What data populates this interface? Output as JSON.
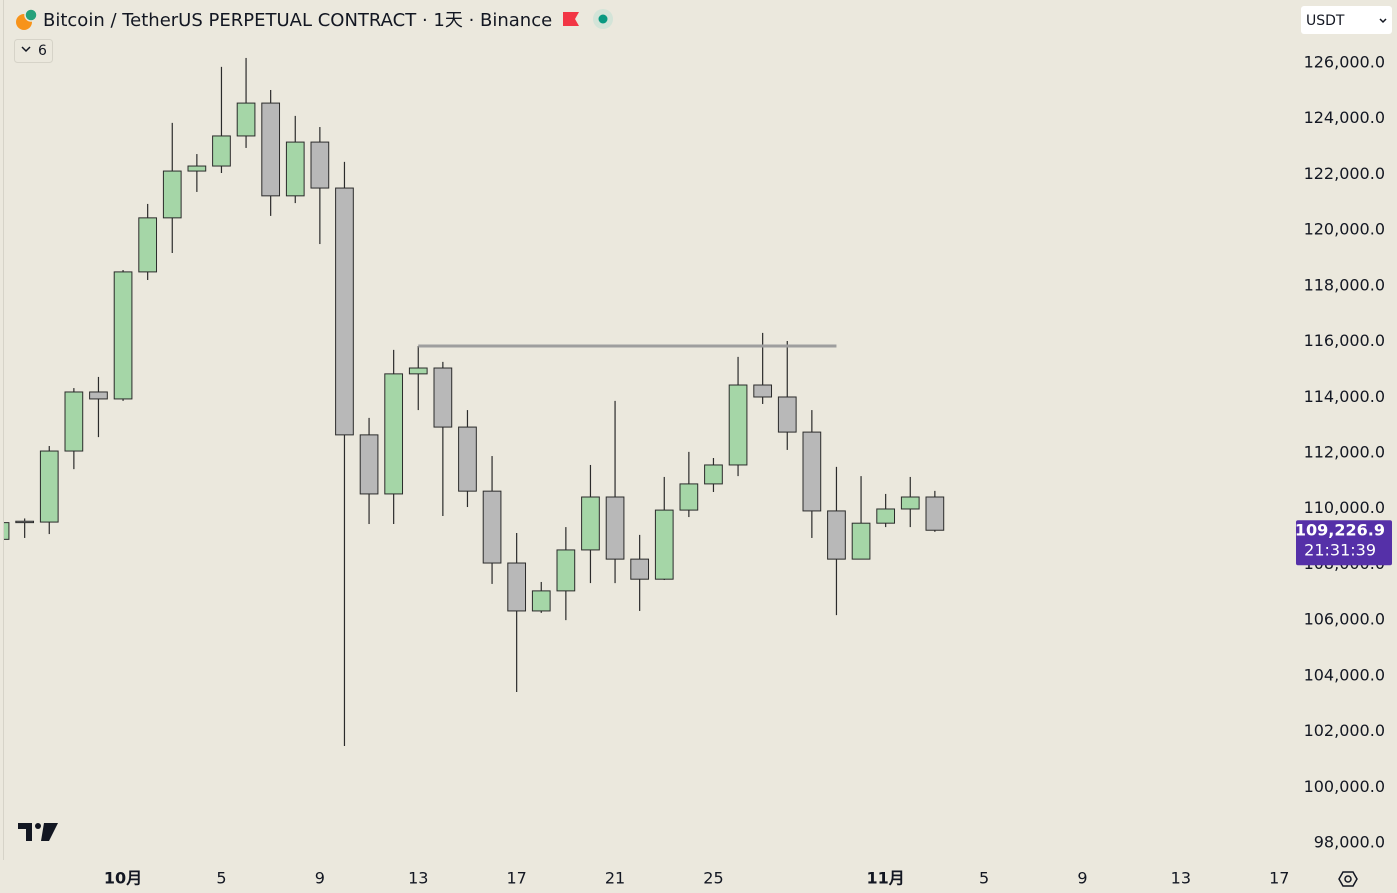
{
  "header": {
    "symbol": "Bitcoin / TetherUS PERPETUAL CONTRACT · 1天 · Binance",
    "interval_count": 6,
    "currency": "USDT"
  },
  "chart_data": {
    "type": "candlestick",
    "x": [
      0,
      1,
      2,
      3,
      4,
      5,
      6,
      7,
      8,
      9,
      10,
      11,
      12,
      13,
      14,
      15,
      16,
      17,
      18,
      19,
      20,
      21,
      22,
      23,
      24,
      25,
      26,
      27,
      28,
      29,
      30,
      31,
      32,
      33,
      34,
      35,
      36,
      37,
      38
    ],
    "open": [
      108900,
      109550,
      109520,
      112070,
      114190,
      113940,
      118500,
      120440,
      122120,
      122300,
      123380,
      124560,
      121230,
      123160,
      121510,
      112650,
      110530,
      114840,
      115050,
      112930,
      110630,
      108050,
      106330,
      107050,
      108520,
      110420,
      108190,
      107470,
      109950,
      110890,
      111570,
      114440,
      114010,
      112750,
      109920,
      108190,
      109480,
      109990,
      110420
    ],
    "high": [
      109600,
      109650,
      112250,
      114330,
      114730,
      118570,
      120940,
      123850,
      122730,
      125860,
      126180,
      125030,
      124100,
      123700,
      122450,
      113260,
      115700,
      115840,
      115270,
      113540,
      111890,
      109130,
      107370,
      109340,
      111570,
      113870,
      109060,
      111140,
      112040,
      111820,
      115450,
      116310,
      116020,
      113540,
      111500,
      111170,
      110530,
      111140,
      110640
    ],
    "low": [
      108800,
      108950,
      109090,
      111420,
      112570,
      113870,
      118210,
      119180,
      121370,
      122050,
      122950,
      120510,
      120970,
      119500,
      101480,
      109450,
      109450,
      113540,
      109740,
      110060,
      107300,
      103420,
      106260,
      106000,
      107330,
      107330,
      106330,
      107440,
      109700,
      110600,
      111170,
      113760,
      112110,
      108950,
      106180,
      108190,
      109340,
      109340,
      109170
    ],
    "close": [
      109500,
      109500,
      112070,
      114190,
      113940,
      118500,
      120440,
      122120,
      122300,
      123380,
      124560,
      121230,
      123160,
      121510,
      112650,
      110530,
      114840,
      115050,
      112930,
      110630,
      108050,
      106330,
      107050,
      108520,
      110420,
      108190,
      107470,
      109950,
      110890,
      111570,
      114440,
      114010,
      112750,
      109920,
      108190,
      109480,
      109990,
      110420,
      109226.9
    ],
    "up_color": "#a5d6a7",
    "down_color": "#b8b8b8",
    "border_color": "#2b2b2b",
    "ylim": [
      97390,
      128260
    ],
    "yticks": [
      {
        "value": 98000,
        "label": "98,000.0"
      },
      {
        "value": 100000,
        "label": "100,000.0"
      },
      {
        "value": 102000,
        "label": "102,000.0"
      },
      {
        "value": 104000,
        "label": "104,000.0"
      },
      {
        "value": 106000,
        "label": "106,000.0"
      },
      {
        "value": 108000,
        "label": "108,000.0"
      },
      {
        "value": 110000,
        "label": "110,000.0"
      },
      {
        "value": 112000,
        "label": "112,000.0"
      },
      {
        "value": 114000,
        "label": "114,000.0"
      },
      {
        "value": 116000,
        "label": "116,000.0"
      },
      {
        "value": 118000,
        "label": "118,000.0"
      },
      {
        "value": 120000,
        "label": "120,000.0"
      },
      {
        "value": 122000,
        "label": "122,000.0"
      },
      {
        "value": 124000,
        "label": "124,000.0"
      },
      {
        "value": 126000,
        "label": "126,000.0"
      }
    ],
    "xlim": [
      0.16,
      52.64
    ],
    "xticks": [
      {
        "value": 5,
        "label": "10月"
      },
      {
        "value": 9,
        "label": "5"
      },
      {
        "value": 13,
        "label": "9"
      },
      {
        "value": 17,
        "label": "13"
      },
      {
        "value": 21,
        "label": "17"
      },
      {
        "value": 25,
        "label": "21"
      },
      {
        "value": 29,
        "label": "25"
      },
      {
        "value": 36,
        "label": "11月"
      },
      {
        "value": 40,
        "label": "5"
      },
      {
        "value": 44,
        "label": "9"
      },
      {
        "value": 48,
        "label": "13"
      },
      {
        "value": 52,
        "label": "17"
      }
    ],
    "grid": false,
    "hline": {
      "value": 115840,
      "x": [
        17,
        34
      ],
      "color": "#9e9e9e"
    },
    "last_price": {
      "value": 109226.9,
      "label": "109,226.9",
      "color": "#5530a8"
    },
    "countdown": "21:31:39"
  }
}
